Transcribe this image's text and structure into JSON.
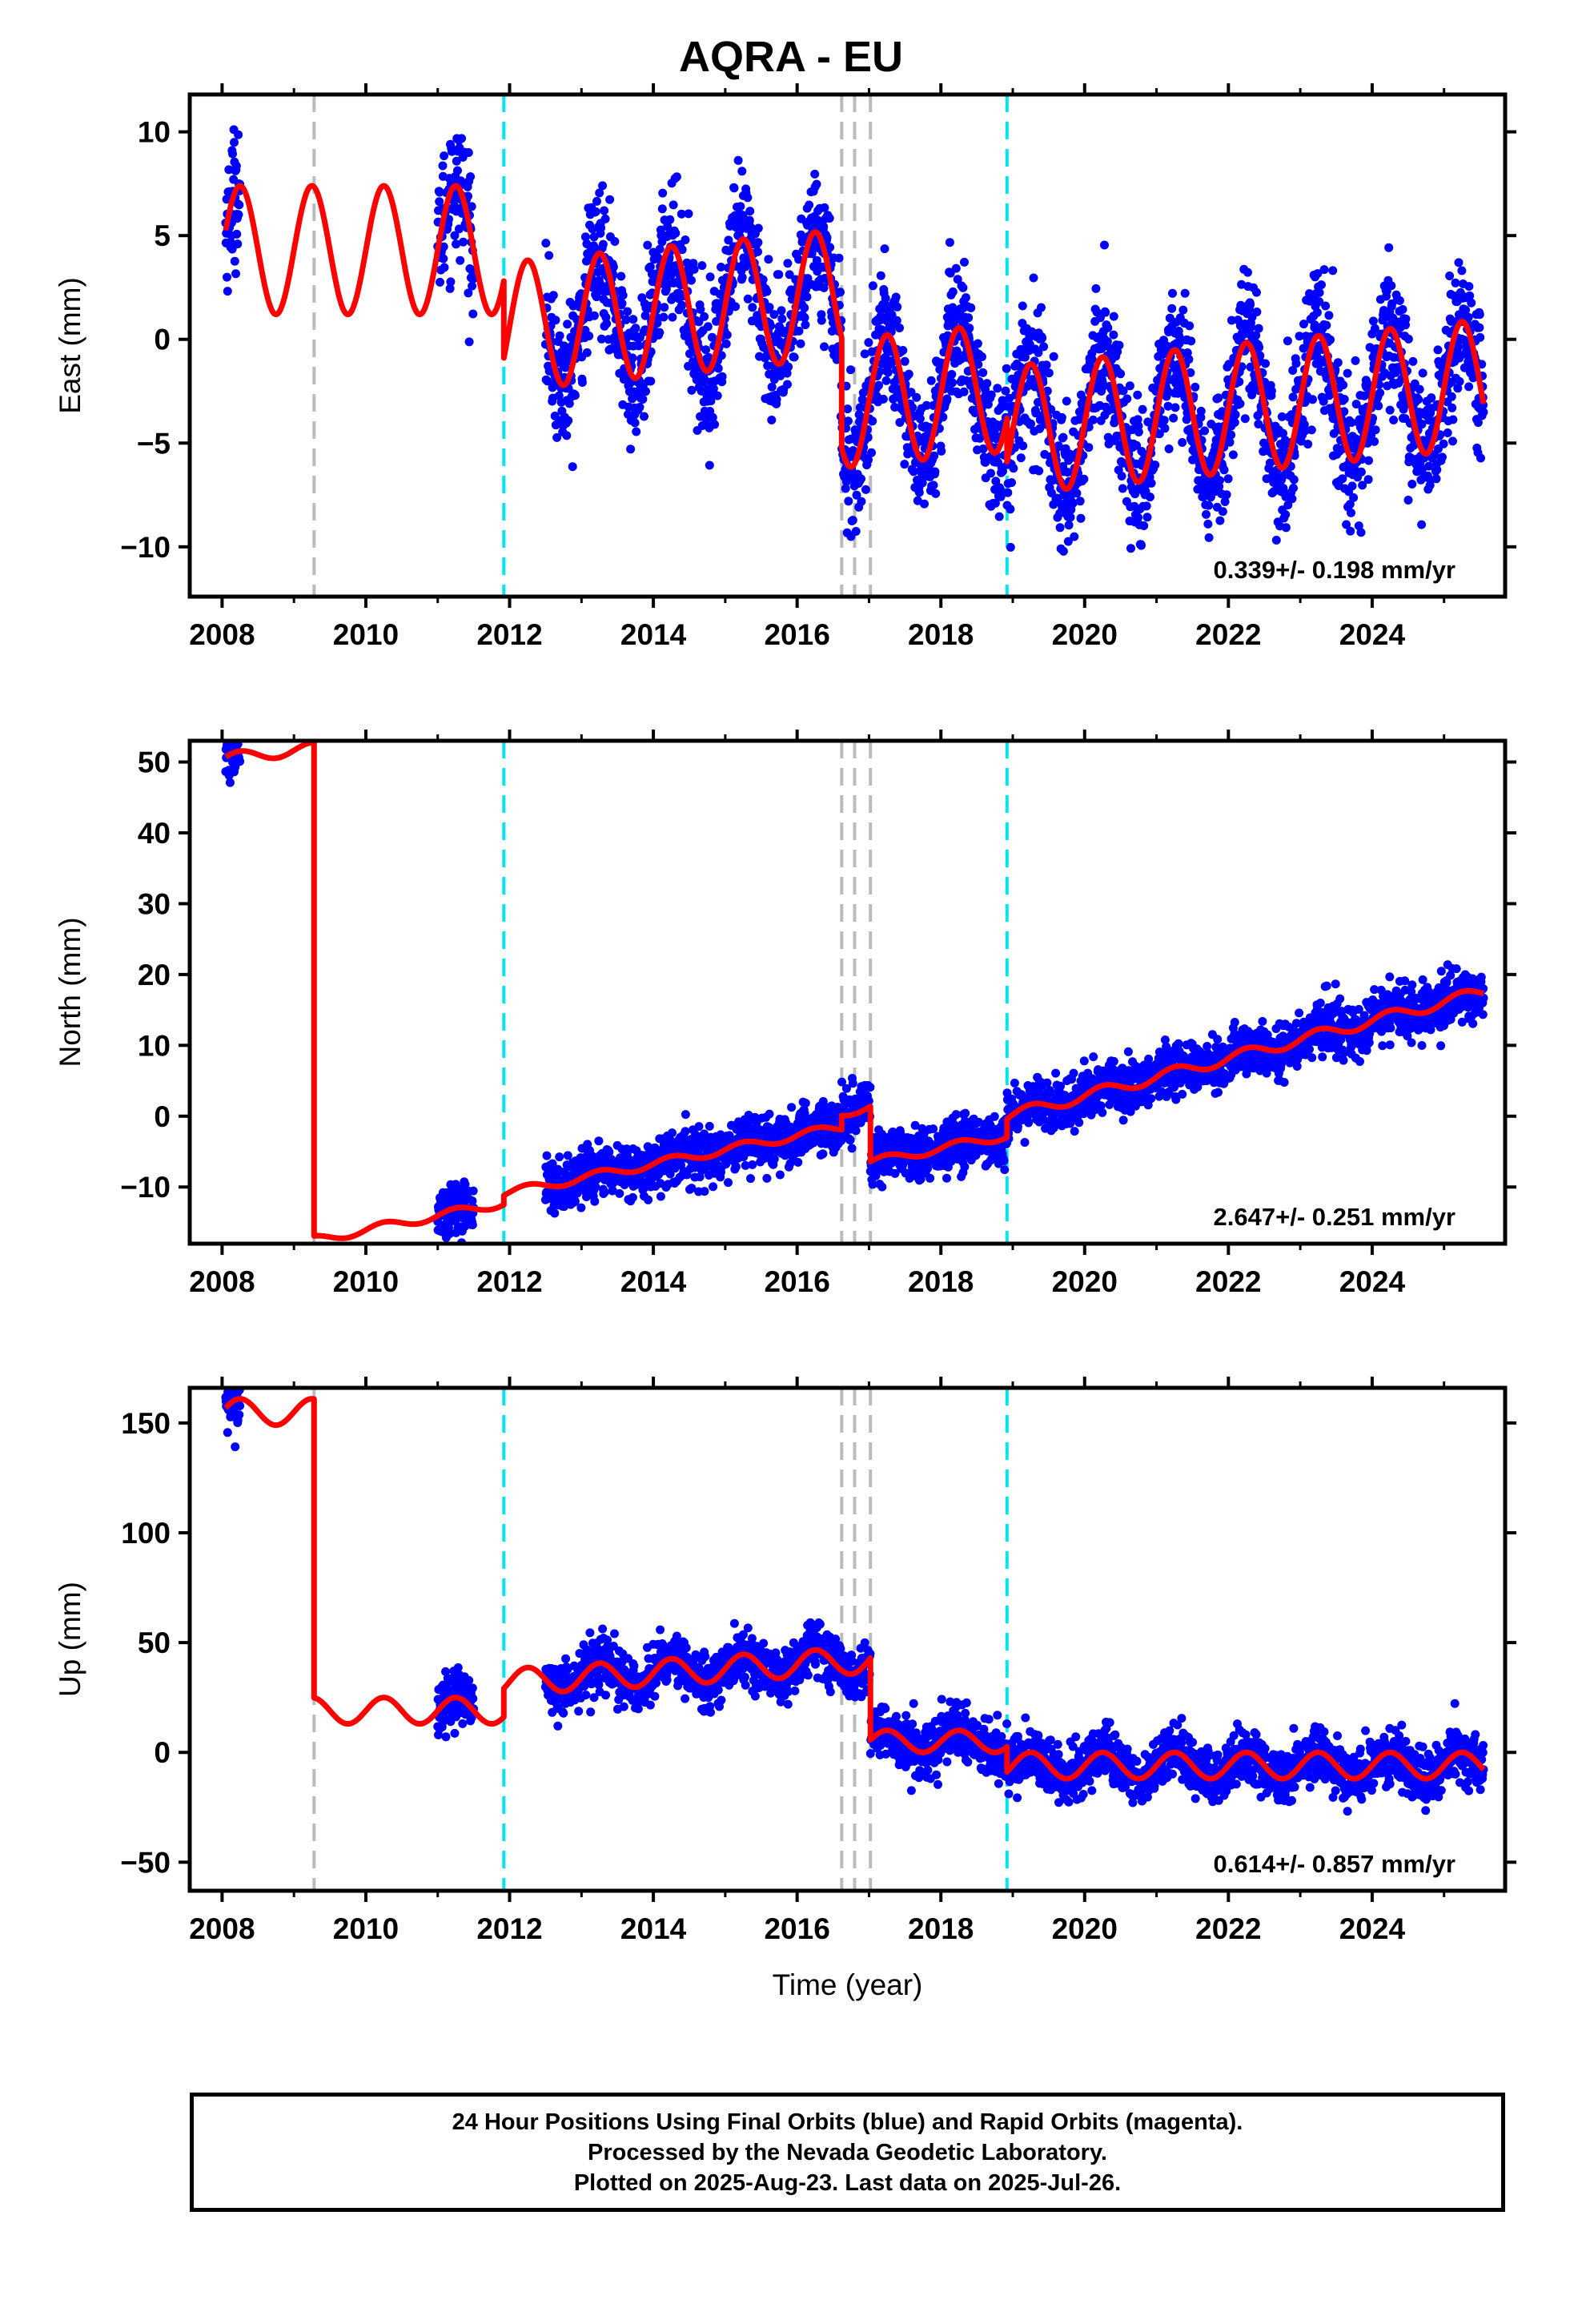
{
  "chart_data": [
    {
      "type": "scatter",
      "panel": "east",
      "title": "AQRA - EU",
      "ylabel": "East (mm)",
      "xlabel": "",
      "xlim": [
        2007.55,
        2025.85
      ],
      "ylim": [
        -12.4,
        11.8
      ],
      "xticks": [
        2008,
        2010,
        2012,
        2014,
        2016,
        2018,
        2020,
        2022,
        2024
      ],
      "yticks": [
        -10,
        -5,
        0,
        5,
        10
      ],
      "ytick_labels": [
        "−10",
        "−5",
        "0",
        "5",
        "10"
      ],
      "rate": "0.339+/- 0.198 mm/yr",
      "series": [
        {
          "role": "final-orbits",
          "color": "#0000ff",
          "style": "points"
        },
        {
          "role": "model-fit",
          "color": "#ff0000",
          "style": "line"
        }
      ],
      "gray_breaks": [
        2009.28,
        2016.62,
        2016.8,
        2017.02
      ],
      "cyan_breaks": [
        2011.92,
        2018.92
      ],
      "data_segments": [
        [
          2008.05,
          2008.25
        ],
        [
          2011.0,
          2011.5
        ],
        [
          2012.5,
          2025.55
        ]
      ],
      "model": {
        "segments": [
          {
            "x0": 2008.05,
            "x1": 2011.92,
            "offset": 4.3,
            "trend": 0.0,
            "amp": 3.1,
            "phase": 0.0
          },
          {
            "x0": 2011.92,
            "x1": 2016.62,
            "offset": 0.6,
            "trend": 0.34,
            "amp": 3.1,
            "phase": 0.0
          },
          {
            "x0": 2016.62,
            "x1": 2018.92,
            "offset": -3.1,
            "trend": 0.34,
            "amp": 3.1,
            "phase": 0.0
          },
          {
            "x0": 2018.92,
            "x1": 2025.55,
            "offset": -4.4,
            "trend": 0.34,
            "amp": 3.1,
            "phase": 0.0
          }
        ],
        "noise": 1.6
      }
    },
    {
      "type": "scatter",
      "panel": "north",
      "ylabel": "North (mm)",
      "xlabel": "",
      "xlim": [
        2007.55,
        2025.85
      ],
      "ylim": [
        -18,
        53
      ],
      "xticks": [
        2008,
        2010,
        2012,
        2014,
        2016,
        2018,
        2020,
        2022,
        2024
      ],
      "yticks": [
        -10,
        0,
        10,
        20,
        30,
        40,
        50
      ],
      "ytick_labels": [
        "−10",
        "0",
        "10",
        "20",
        "30",
        "40",
        "50"
      ],
      "rate": "2.647+/- 0.251 mm/yr",
      "series": [
        {
          "role": "final-orbits",
          "color": "#0000ff",
          "style": "points"
        },
        {
          "role": "model-fit",
          "color": "#ff0000",
          "style": "line"
        }
      ],
      "gray_breaks": [
        2009.28,
        2016.62,
        2016.8,
        2017.02
      ],
      "cyan_breaks": [
        2011.92,
        2018.92
      ],
      "data_segments": [
        [
          2008.05,
          2008.25
        ],
        [
          2011.0,
          2011.5
        ],
        [
          2012.5,
          2025.55
        ]
      ],
      "model": {
        "segments": [
          {
            "x0": 2008.05,
            "x1": 2009.28,
            "offset": 50.5,
            "trend": 1.2,
            "amp": 0.8,
            "phase": 0.0
          },
          {
            "x0": 2009.28,
            "x1": 2011.92,
            "offset": -17.5,
            "trend": 2.0,
            "amp": 0.6,
            "phase": 0.0
          },
          {
            "x0": 2011.92,
            "x1": 2016.62,
            "offset": -10.9,
            "trend": 2.0,
            "amp": 0.6,
            "phase": 0.0
          },
          {
            "x0": 2016.62,
            "x1": 2017.02,
            "offset": 0.5,
            "trend": 2.0,
            "amp": 0.6,
            "phase": 0.0
          },
          {
            "x0": 2017.02,
            "x1": 2018.92,
            "offset": -6.5,
            "trend": 2.0,
            "amp": 0.6,
            "phase": 0.0
          },
          {
            "x0": 2018.92,
            "x1": 2025.55,
            "offset": 0.0,
            "trend": 2.65,
            "amp": 0.8,
            "phase": 0.0
          }
        ],
        "noise": 1.8
      }
    },
    {
      "type": "scatter",
      "panel": "up",
      "ylabel": "Up (mm)",
      "xlabel": "Time (year)",
      "xlim": [
        2007.55,
        2025.85
      ],
      "ylim": [
        -63,
        166
      ],
      "xticks": [
        2008,
        2010,
        2012,
        2014,
        2016,
        2018,
        2020,
        2022,
        2024
      ],
      "yticks": [
        -50,
        0,
        50,
        100,
        150
      ],
      "ytick_labels": [
        "−50",
        "0",
        "50",
        "100",
        "150"
      ],
      "rate": "0.614+/- 0.857 mm/yr",
      "series": [
        {
          "role": "final-orbits",
          "color": "#0000ff",
          "style": "points"
        },
        {
          "role": "model-fit",
          "color": "#ff0000",
          "style": "line"
        }
      ],
      "gray_breaks": [
        2009.28,
        2016.62,
        2016.8,
        2017.02
      ],
      "cyan_breaks": [
        2011.92,
        2018.92
      ],
      "data_segments": [
        [
          2008.05,
          2008.25
        ],
        [
          2011.0,
          2011.5
        ],
        [
          2012.5,
          2025.55
        ]
      ],
      "model": {
        "segments": [
          {
            "x0": 2008.05,
            "x1": 2009.28,
            "offset": 155,
            "trend": 0.0,
            "amp": 6,
            "phase": 0.0
          },
          {
            "x0": 2009.28,
            "x1": 2011.92,
            "offset": 19,
            "trend": 0.0,
            "amp": 6,
            "phase": 0.0
          },
          {
            "x0": 2011.92,
            "x1": 2017.02,
            "offset": 32,
            "trend": 2.0,
            "amp": 6,
            "phase": 0.0
          },
          {
            "x0": 2017.02,
            "x1": 2018.92,
            "offset": 5,
            "trend": 0.0,
            "amp": 5,
            "phase": 0.0
          },
          {
            "x0": 2018.92,
            "x1": 2025.55,
            "offset": -6,
            "trend": 0.0,
            "amp": 6,
            "phase": 0.0
          }
        ],
        "noise": 6
      }
    }
  ],
  "caption": {
    "line1": "24 Hour Positions Using Final Orbits (blue) and Rapid Orbits (magenta).",
    "line2": "Processed by the Nevada Geodetic Laboratory.",
    "line3": "Plotted on 2025-Aug-23. Last data on 2025-Jul-26."
  },
  "colors": {
    "points": "#0000ff",
    "fit": "#ff0000",
    "gray_break": "#bbbbbb",
    "cyan_break": "#00e5ee",
    "frame": "#000000"
  }
}
